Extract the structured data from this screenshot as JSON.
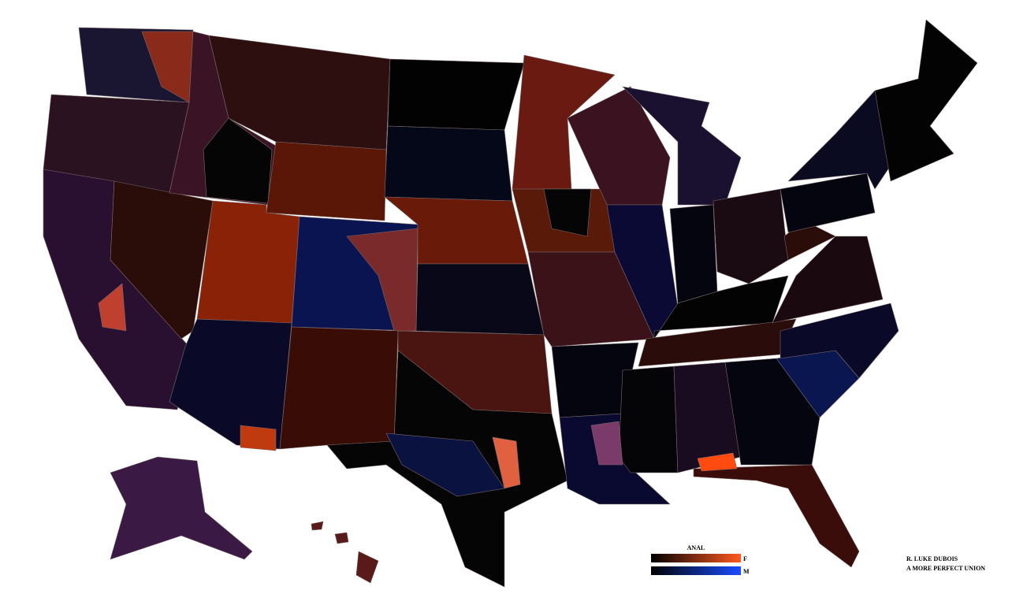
{
  "legend": {
    "title": "ANAL",
    "labels": [
      "F",
      "M"
    ]
  },
  "credit": {
    "author": "R. LUKE DUBOIS",
    "title": "A MORE PERFECT UNION"
  }
}
